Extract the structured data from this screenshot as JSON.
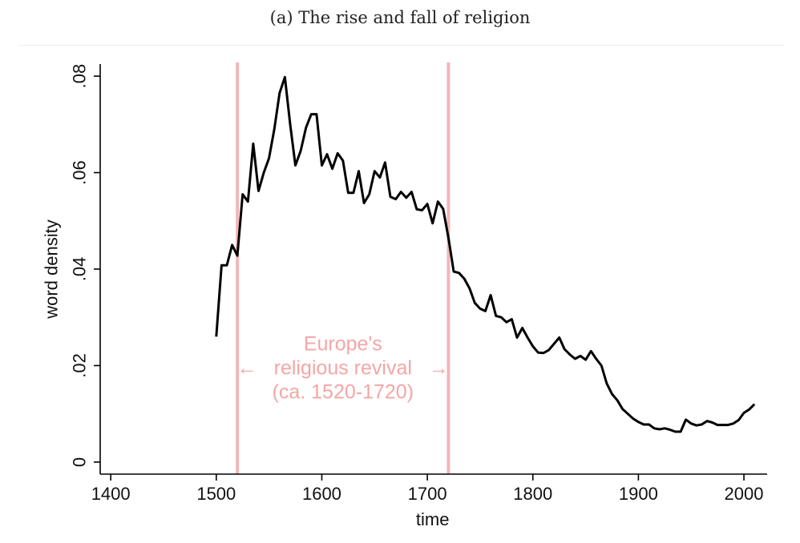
{
  "caption": "(a) The rise and fall of religion",
  "chart_data": {
    "type": "line",
    "title": "",
    "xlabel": "time",
    "ylabel": "word density",
    "xlim": [
      1390,
      2022
    ],
    "ylim": [
      -0.0025,
      0.0825
    ],
    "x_ticks": [
      1400,
      1500,
      1600,
      1700,
      1800,
      1900,
      2000
    ],
    "x_tick_labels": [
      "1400",
      "1500",
      "1600",
      "1700",
      "1800",
      "1900",
      "2000"
    ],
    "y_ticks": [
      0,
      0.02,
      0.04,
      0.06,
      0.08
    ],
    "y_tick_labels": [
      "0",
      ".02",
      ".04",
      ".06",
      ".08"
    ],
    "grid": false,
    "vlines": [
      {
        "x": 1520,
        "color": "#f4b6b6"
      },
      {
        "x": 1720,
        "color": "#f4b6b6"
      }
    ],
    "annotation": {
      "lines": [
        "Europe's",
        "religious revival",
        "(ca. 1520-1720)"
      ],
      "left_arrow": "←",
      "right_arrow": "→",
      "color": "#f4a6a6"
    },
    "series": [
      {
        "color": "#000000",
        "x": [
          1500,
          1505,
          1510,
          1515,
          1520,
          1525,
          1530,
          1535,
          1540,
          1545,
          1550,
          1555,
          1560,
          1565,
          1570,
          1575,
          1580,
          1585,
          1590,
          1595,
          1600,
          1605,
          1610,
          1615,
          1620,
          1625,
          1630,
          1635,
          1640,
          1645,
          1650,
          1655,
          1660,
          1665,
          1670,
          1675,
          1680,
          1685,
          1690,
          1695,
          1700,
          1705,
          1710,
          1715,
          1720,
          1725,
          1730,
          1735,
          1740,
          1745,
          1750,
          1755,
          1760,
          1765,
          1770,
          1775,
          1780,
          1785,
          1790,
          1795,
          1800,
          1805,
          1810,
          1815,
          1820,
          1825,
          1830,
          1835,
          1840,
          1845,
          1850,
          1855,
          1860,
          1865,
          1870,
          1875,
          1880,
          1885,
          1890,
          1895,
          1900,
          1905,
          1910,
          1915,
          1920,
          1925,
          1930,
          1935,
          1940,
          1945,
          1950,
          1955,
          1960,
          1965,
          1970,
          1975,
          1980,
          1985,
          1990,
          1995,
          2000,
          2005,
          2010
        ],
        "y": [
          0.026,
          0.0408,
          0.0408,
          0.045,
          0.0428,
          0.0555,
          0.054,
          0.066,
          0.0562,
          0.06,
          0.063,
          0.069,
          0.0765,
          0.0798,
          0.07,
          0.0615,
          0.0645,
          0.0693,
          0.0721,
          0.0721,
          0.0615,
          0.0638,
          0.0608,
          0.064,
          0.0625,
          0.0558,
          0.0558,
          0.0603,
          0.0537,
          0.0555,
          0.0603,
          0.059,
          0.0621,
          0.055,
          0.0545,
          0.056,
          0.0548,
          0.056,
          0.0524,
          0.0522,
          0.0535,
          0.0495,
          0.054,
          0.0525,
          0.0465,
          0.0395,
          0.0392,
          0.038,
          0.036,
          0.033,
          0.0318,
          0.0313,
          0.0346,
          0.0303,
          0.03,
          0.029,
          0.0296,
          0.0258,
          0.0278,
          0.0258,
          0.024,
          0.0227,
          0.0226,
          0.0232,
          0.0245,
          0.0258,
          0.0234,
          0.0223,
          0.0214,
          0.022,
          0.0212,
          0.023,
          0.0214,
          0.02,
          0.0163,
          0.0141,
          0.0128,
          0.011,
          0.01,
          0.009,
          0.0083,
          0.0078,
          0.0078,
          0.007,
          0.0068,
          0.007,
          0.0067,
          0.0063,
          0.0063,
          0.0088,
          0.008,
          0.0076,
          0.0078,
          0.0085,
          0.0082,
          0.0077,
          0.0077,
          0.0077,
          0.008,
          0.0087,
          0.0102,
          0.0109,
          0.012
        ]
      }
    ]
  }
}
